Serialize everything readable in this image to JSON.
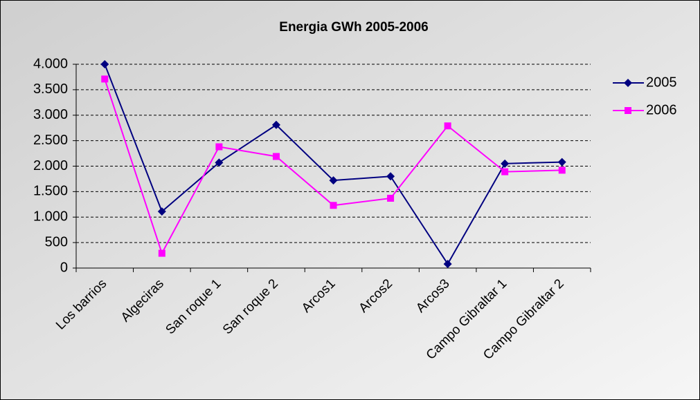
{
  "chart_data": {
    "type": "line",
    "title": "Energia GWh 2005-2006",
    "categories": [
      "Los barrios",
      "Algeciras",
      "San roque 1",
      "San roque 2",
      "Arcos1",
      "Arcos2",
      "Arcos3",
      "Campo Gibraltar 1",
      "Campo Gibraltar 2"
    ],
    "series": [
      {
        "name": "2005",
        "color": "#000080",
        "marker": "diamond",
        "values": [
          4000,
          1110,
          2070,
          2810,
          1720,
          1800,
          80,
          2050,
          2080
        ]
      },
      {
        "name": "2006",
        "color": "#ff00ff",
        "marker": "square",
        "values": [
          3710,
          290,
          2380,
          2190,
          1230,
          1370,
          2790,
          1890,
          1920
        ]
      }
    ],
    "ylim": [
      0,
      4000
    ],
    "yticks": [
      0,
      500,
      {
        "value": 1000,
        "label": "1.000"
      },
      {
        "value": 1500,
        "label": "1.500"
      },
      {
        "value": 2000,
        "label": "2.000"
      },
      {
        "value": 2500,
        "label": "2.500"
      },
      {
        "value": 3000,
        "label": "3.000"
      },
      {
        "value": 3500,
        "label": "3.500"
      },
      {
        "value": 4000,
        "label": "4.000"
      }
    ],
    "grid": true,
    "legend": "right"
  }
}
